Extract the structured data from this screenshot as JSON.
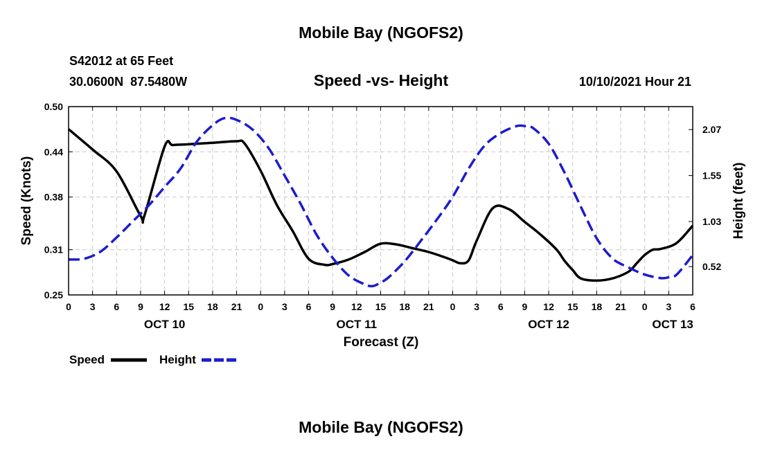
{
  "header": {
    "title": "Mobile Bay (NGOFS2)",
    "station": "S42012 at 65 Feet",
    "coords": "30.0600N  87.5480W",
    "subtitle": "Speed -vs- Height",
    "datetime": "10/10/2021 Hour 21"
  },
  "footer": {
    "title": "Mobile Bay (NGOFS2)"
  },
  "legend": {
    "speed_label": "Speed",
    "height_label": "Height"
  },
  "chart_data": {
    "type": "line",
    "title": "Speed -vs- Height",
    "xlabel": "Forecast (Z)",
    "ylabel": "Speed (Knots)",
    "y2label": "Height (feet)",
    "xlim": [
      0,
      78
    ],
    "ylim": [
      0.25,
      0.5
    ],
    "y2lim": [
      0.2,
      2.33
    ],
    "grid": true,
    "legend_position": "bottom-left",
    "xticks": [
      {
        "x": 0,
        "label": "0"
      },
      {
        "x": 3,
        "label": "3"
      },
      {
        "x": 6,
        "label": "6"
      },
      {
        "x": 9,
        "label": "9"
      },
      {
        "x": 12,
        "label": "12"
      },
      {
        "x": 15,
        "label": "15"
      },
      {
        "x": 18,
        "label": "18"
      },
      {
        "x": 21,
        "label": "21"
      },
      {
        "x": 24,
        "label": "0"
      },
      {
        "x": 27,
        "label": "3"
      },
      {
        "x": 30,
        "label": "6"
      },
      {
        "x": 33,
        "label": "9"
      },
      {
        "x": 36,
        "label": "12"
      },
      {
        "x": 39,
        "label": "15"
      },
      {
        "x": 42,
        "label": "18"
      },
      {
        "x": 45,
        "label": "21"
      },
      {
        "x": 48,
        "label": "0"
      },
      {
        "x": 51,
        "label": "3"
      },
      {
        "x": 54,
        "label": "6"
      },
      {
        "x": 57,
        "label": "9"
      },
      {
        "x": 60,
        "label": "12"
      },
      {
        "x": 63,
        "label": "15"
      },
      {
        "x": 66,
        "label": "18"
      },
      {
        "x": 69,
        "label": "21"
      },
      {
        "x": 72,
        "label": "0"
      },
      {
        "x": 75,
        "label": "3"
      },
      {
        "x": 78,
        "label": "6"
      }
    ],
    "date_labels": [
      {
        "x": 12,
        "label": "OCT 10"
      },
      {
        "x": 36,
        "label": "OCT 11"
      },
      {
        "x": 60,
        "label": "OCT 12"
      },
      {
        "x": 75.5,
        "label": "OCT 13"
      }
    ],
    "yticks": [
      "0.25",
      "0.31",
      "0.38",
      "0.44",
      "0.50"
    ],
    "y2ticks": [
      "0.52",
      "1.03",
      "1.55",
      "2.07"
    ],
    "series": [
      {
        "name": "Speed",
        "axis": "left",
        "color": "#000000",
        "style": "solid",
        "x": [
          0,
          3,
          6,
          9,
          9.5,
          12,
          13,
          15,
          18,
          21,
          22,
          24,
          26,
          28,
          30,
          32,
          33,
          35,
          37,
          39,
          41,
          43,
          45,
          47,
          48,
          49,
          50,
          51,
          53,
          55,
          57,
          59,
          61,
          62,
          63,
          64,
          66,
          68,
          70,
          71,
          72,
          73,
          74,
          76,
          78
        ],
        "y": [
          0.47,
          0.443,
          0.414,
          0.355,
          0.356,
          0.447,
          0.449,
          0.45,
          0.452,
          0.454,
          0.451,
          0.415,
          0.37,
          0.335,
          0.298,
          0.29,
          0.291,
          0.297,
          0.307,
          0.318,
          0.317,
          0.312,
          0.307,
          0.3,
          0.296,
          0.292,
          0.296,
          0.322,
          0.365,
          0.364,
          0.347,
          0.33,
          0.31,
          0.295,
          0.283,
          0.272,
          0.269,
          0.272,
          0.281,
          0.292,
          0.303,
          0.31,
          0.311,
          0.319,
          0.342
        ]
      },
      {
        "name": "Height",
        "axis": "right",
        "color": "#1c1ccc",
        "style": "dashed",
        "x": [
          0,
          2,
          4,
          6,
          8,
          10,
          12,
          14,
          16,
          18,
          19.5,
          21,
          23,
          25,
          27,
          29,
          31,
          33,
          35,
          37,
          38,
          39,
          40,
          42,
          44,
          46,
          48,
          50,
          52,
          54,
          56,
          57,
          58,
          60,
          62,
          64,
          66,
          68,
          70,
          72,
          74,
          75,
          76,
          78
        ],
        "y": [
          0.6,
          0.61,
          0.69,
          0.85,
          1.03,
          1.21,
          1.42,
          1.63,
          1.93,
          2.12,
          2.2,
          2.18,
          2.07,
          1.86,
          1.55,
          1.23,
          0.88,
          0.62,
          0.42,
          0.32,
          0.3,
          0.34,
          0.4,
          0.58,
          0.81,
          1.05,
          1.31,
          1.63,
          1.89,
          2.03,
          2.11,
          2.11,
          2.09,
          1.91,
          1.58,
          1.2,
          0.84,
          0.61,
          0.51,
          0.43,
          0.39,
          0.4,
          0.43,
          0.65
        ]
      }
    ]
  }
}
